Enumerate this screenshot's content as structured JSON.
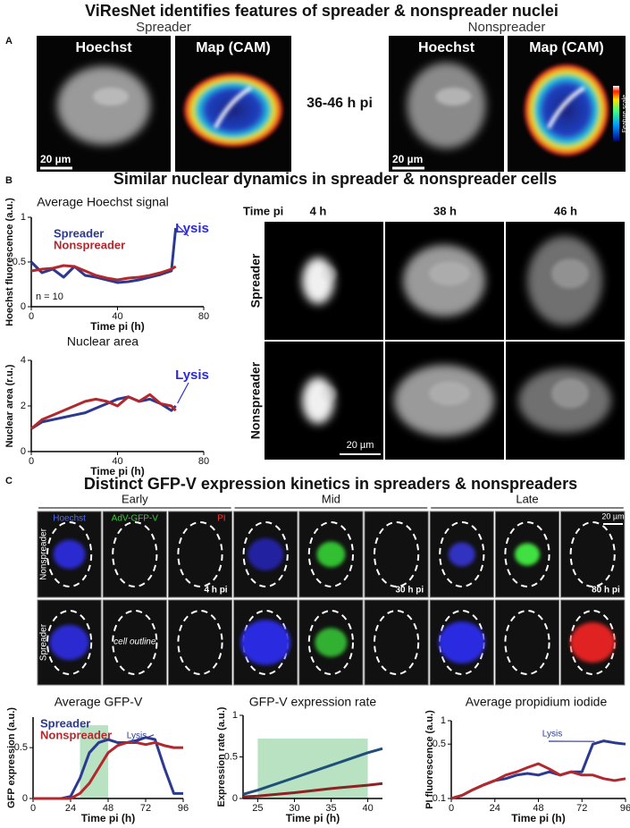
{
  "panels": {
    "a": {
      "label": "A",
      "title": "ViResNet identifies features of spreader & nonspreader nuclei",
      "groups": [
        "Spreader",
        "Nonspreader"
      ],
      "images": [
        "Hoechst",
        "Map (CAM)"
      ],
      "scale_bar": "20 µm",
      "time": "36-46 h pi",
      "colorbar_label": "Feature scale"
    },
    "b": {
      "label": "B",
      "title": "Similar nuclear dynamics in spreader & nonspreader cells",
      "time_label": "Time pi",
      "times": [
        "4 h",
        "38 h",
        "46 h"
      ],
      "rows": [
        "Spreader",
        "Nonspreader"
      ],
      "scale_bar": "20 µm"
    },
    "c": {
      "label": "C",
      "title": "Distinct GFP-V expression kinetics in spreaders & nonspreaders",
      "phases": [
        "Early",
        "Mid",
        "Late"
      ],
      "channels": [
        "Hoechst",
        "AdV-GFP-V",
        "PI"
      ],
      "rows": [
        "Nonspreader",
        "Spreader"
      ],
      "outline_label": "cell outline",
      "times": [
        "4 h pi",
        "30 h pi",
        "80 h pi"
      ],
      "scale_bar": "20 µm"
    }
  },
  "chart_data": [
    {
      "type": "line",
      "title": "Average Hoechst signal",
      "x_label": "Time pi (h)",
      "y_label": "Hoechst fluorescence (a.u.)",
      "legend": true,
      "annotation": "Lysis",
      "note": "n = 10",
      "x": [
        0,
        5,
        10,
        15,
        20,
        25,
        30,
        35,
        40,
        45,
        50,
        55,
        60,
        65,
        67
      ],
      "series": [
        {
          "name": "Spreader",
          "color": "#2b3990",
          "values": [
            0.5,
            0.38,
            0.42,
            0.33,
            0.45,
            0.35,
            0.33,
            0.3,
            0.27,
            0.28,
            0.3,
            0.33,
            0.36,
            0.4,
            0.88
          ]
        },
        {
          "name": "Nonspreader",
          "color": "#b2282d",
          "values": [
            0.4,
            0.42,
            0.43,
            0.46,
            0.45,
            0.4,
            0.35,
            0.32,
            0.3,
            0.32,
            0.33,
            0.35,
            0.38,
            0.42,
            0.45
          ]
        }
      ],
      "xlim": [
        0,
        80
      ],
      "ylim": [
        0,
        1
      ],
      "xticks": [
        0,
        40,
        80
      ],
      "yticks": [
        0,
        0.5,
        1
      ]
    },
    {
      "type": "line",
      "title": "Nuclear area",
      "x_label": "Time pi (h)",
      "y_label": "Nuclear area (r.u.)",
      "annotation": "Lysis",
      "x": [
        0,
        5,
        10,
        15,
        20,
        25,
        30,
        35,
        40,
        45,
        50,
        55,
        60,
        65,
        67
      ],
      "series": [
        {
          "color": "#2b3990",
          "values": [
            1,
            1.3,
            1.4,
            1.5,
            1.6,
            1.7,
            1.9,
            2.1,
            2.3,
            2.4,
            2.2,
            2.3,
            2.1,
            1.8,
            2.0
          ]
        },
        {
          "color": "#b2282d",
          "values": [
            1,
            1.4,
            1.6,
            1.8,
            2.0,
            2.2,
            2.3,
            2.2,
            2.0,
            2.4,
            2.2,
            2.5,
            2.1,
            2.0,
            1.8
          ]
        }
      ],
      "xlim": [
        0,
        80
      ],
      "ylim": [
        0,
        4
      ],
      "xticks": [
        0,
        40,
        80
      ],
      "yticks": [
        0,
        2,
        4
      ]
    },
    {
      "type": "line",
      "title": "Average GFP-V",
      "x_label": "Time pi (h)",
      "y_label": "GFP expression (a.u.)",
      "legend": true,
      "annotation": "Lysis",
      "shade": {
        "x": [
          30,
          48
        ],
        "y": [
          0,
          0.72
        ]
      },
      "x": [
        0,
        6,
        12,
        18,
        24,
        30,
        36,
        42,
        48,
        54,
        60,
        66,
        72,
        78,
        84,
        90,
        96
      ],
      "series": [
        {
          "name": "Spreader",
          "color": "#2b3990",
          "values": [
            0,
            0,
            0,
            0,
            0.02,
            0.2,
            0.45,
            0.55,
            0.58,
            0.55,
            0.55,
            0.57,
            0.6,
            0.58,
            0.3,
            0.05,
            0.05
          ]
        },
        {
          "name": "Nonspreader",
          "color": "#b2282d",
          "values": [
            0,
            0,
            0,
            0,
            0,
            0.05,
            0.15,
            0.3,
            0.45,
            0.52,
            0.55,
            0.55,
            0.53,
            0.55,
            0.52,
            0.5,
            0.5
          ]
        }
      ],
      "xlim": [
        0,
        96
      ],
      "ylim": [
        0,
        0.8
      ],
      "xticks": [
        0,
        24,
        48,
        72,
        96
      ],
      "yticks": [
        0,
        0.5
      ]
    },
    {
      "type": "line",
      "title": "GFP-V expression rate",
      "x_label": "Time pi (h)",
      "y_label": "Expression rate (a.u.)",
      "shade": {
        "x": [
          25,
          40
        ],
        "y": [
          0,
          0.72
        ]
      },
      "x": [
        23,
        25,
        30,
        35,
        40,
        42
      ],
      "series": [
        {
          "color": "#1f4e79",
          "values": [
            0.05,
            0.1,
            0.25,
            0.4,
            0.55,
            0.6
          ]
        },
        {
          "color": "#8b2323",
          "values": [
            0.02,
            0.03,
            0.07,
            0.12,
            0.16,
            0.18
          ]
        }
      ],
      "xlim": [
        23,
        42
      ],
      "ylim": [
        0,
        1
      ],
      "xticks": [
        25,
        30,
        35,
        40
      ],
      "yticks": [
        0,
        0.5,
        1
      ]
    },
    {
      "type": "line",
      "title": "Average propidium iodide",
      "x_label": "Time pi (h)",
      "y_label": "PI fluorescence (a.u.)",
      "y_scale": "log",
      "annotation": "Lysis",
      "x": [
        0,
        6,
        12,
        18,
        24,
        30,
        36,
        42,
        48,
        54,
        60,
        66,
        72,
        78,
        84,
        90,
        96
      ],
      "series": [
        {
          "color": "#2b3990",
          "values": [
            0.1,
            0.11,
            0.13,
            0.15,
            0.17,
            0.18,
            0.2,
            0.21,
            0.2,
            0.22,
            0.2,
            0.22,
            0.22,
            0.5,
            0.55,
            0.52,
            0.5
          ]
        },
        {
          "color": "#b2282d",
          "values": [
            0.1,
            0.11,
            0.13,
            0.15,
            0.17,
            0.2,
            0.22,
            0.25,
            0.28,
            0.24,
            0.2,
            0.22,
            0.2,
            0.2,
            0.18,
            0.17,
            0.18
          ]
        }
      ],
      "xlim": [
        0,
        96
      ],
      "ylim": [
        0.1,
        1
      ],
      "xticks": [
        0,
        24,
        48,
        72,
        96
      ],
      "yticks": [
        0.1,
        0.5,
        1
      ]
    }
  ]
}
